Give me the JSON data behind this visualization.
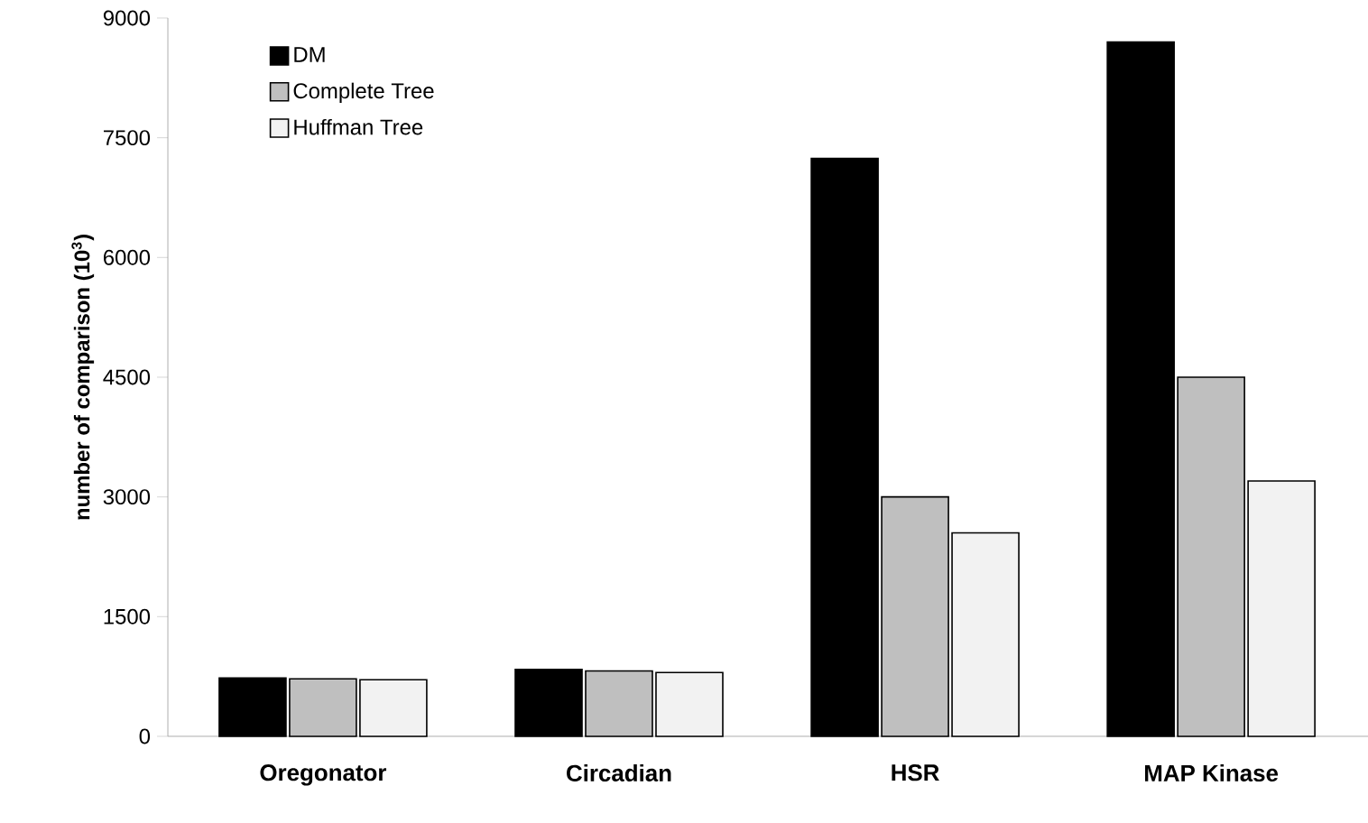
{
  "chart_data": {
    "type": "bar",
    "ylabel": "number of comparison (10$^{3}$)",
    "categories": [
      "Oregonator",
      "Circadian",
      "HSR",
      "MAP Kinase"
    ],
    "series": [
      {
        "name": "DM",
        "color": "#000000",
        "values": [
          730,
          840,
          7240,
          8700
        ]
      },
      {
        "name": "Complete Tree",
        "color": "#bfbfbf",
        "values": [
          720,
          820,
          3000,
          4500
        ]
      },
      {
        "name": "Huffman Tree",
        "color": "#f2f2f2",
        "values": [
          710,
          800,
          2550,
          3200
        ]
      }
    ],
    "ylim": [
      0,
      9000
    ],
    "yticks": [
      0,
      1500,
      3000,
      4500,
      6000,
      7500,
      9000
    ],
    "legend": "top left"
  }
}
